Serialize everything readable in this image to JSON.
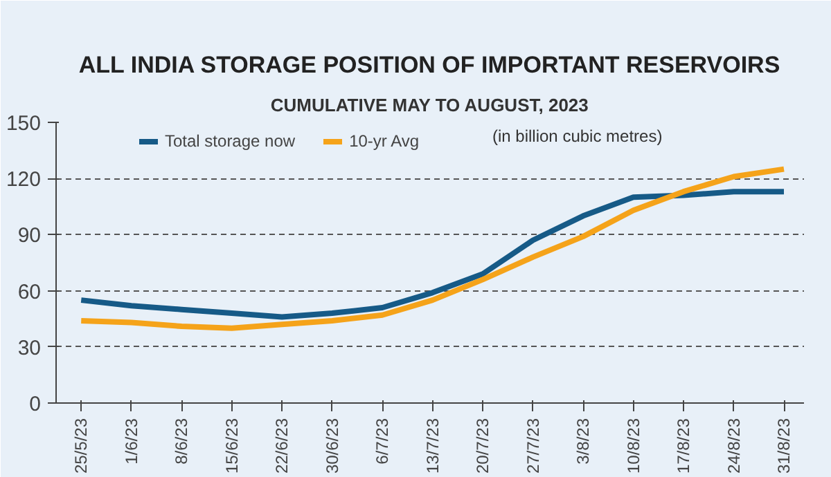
{
  "chart_data": {
    "type": "line",
    "title": "ALL INDIA STORAGE POSITION OF IMPORTANT RESERVOIRS",
    "subtitle": "CUMULATIVE MAY TO AUGUST, 2023",
    "annotations": [
      "(in billion cubic metres)"
    ],
    "categories": [
      "25/5/23",
      "1/6/23",
      "8/6/23",
      "15/6/23",
      "22/6/23",
      "30/6/23",
      "6/7/23",
      "13/7/23",
      "20/7/23",
      "27/7/23",
      "3/8/23",
      "10/8/23",
      "17/8/23",
      "24/8/23",
      "31/8/23"
    ],
    "series": [
      {
        "name": "Total storage now",
        "color": "#165a87",
        "values": [
          55,
          52,
          50,
          48,
          46,
          48,
          51,
          59,
          69,
          87,
          100,
          110,
          111,
          113,
          113
        ]
      },
      {
        "name": "10-yr Avg",
        "color": "#f5a31a",
        "values": [
          44,
          43,
          41,
          40,
          42,
          44,
          47,
          55,
          66,
          78,
          89,
          103,
          113,
          121,
          125
        ]
      }
    ],
    "ylim": [
      0,
      150
    ],
    "yticks": [
      0,
      30,
      60,
      90,
      120,
      150
    ],
    "grid": "y",
    "legend": "top",
    "line_style": "solid"
  }
}
